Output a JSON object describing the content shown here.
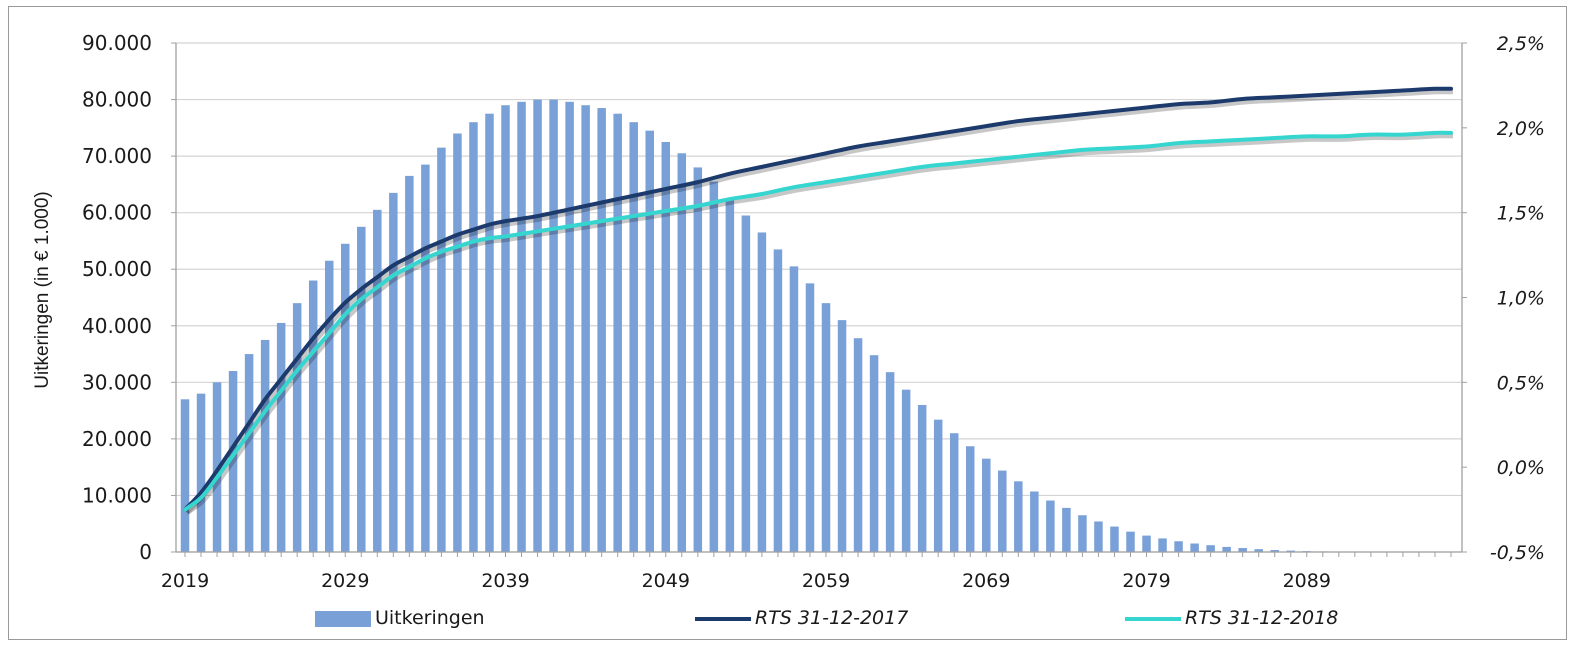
{
  "chart_data": {
    "type": "bar+line",
    "ylabel": "Uitkeringen (in € 1.000)",
    "ylim": [
      0,
      90000
    ],
    "y2lim": [
      -0.5,
      2.5
    ],
    "yticks": [
      "0",
      "10.000",
      "20.000",
      "30.000",
      "40.000",
      "50.000",
      "60.000",
      "70.000",
      "80.000",
      "90.000"
    ],
    "y2ticks": [
      "-0,5%",
      "0,0%",
      "0,5%",
      "1,0%",
      "1,5%",
      "2,0%",
      "2,5%"
    ],
    "xticks": [
      "2019",
      "2029",
      "2039",
      "2049",
      "2059",
      "2069",
      "2079",
      "2089"
    ],
    "grid": true,
    "legend_position": "bottom",
    "years": [
      2019,
      2020,
      2021,
      2022,
      2023,
      2024,
      2025,
      2026,
      2027,
      2028,
      2029,
      2030,
      2031,
      2032,
      2033,
      2034,
      2035,
      2036,
      2037,
      2038,
      2039,
      2040,
      2041,
      2042,
      2043,
      2044,
      2045,
      2046,
      2047,
      2048,
      2049,
      2050,
      2051,
      2052,
      2053,
      2054,
      2055,
      2056,
      2057,
      2058,
      2059,
      2060,
      2061,
      2062,
      2063,
      2064,
      2065,
      2066,
      2067,
      2068,
      2069,
      2070,
      2071,
      2072,
      2073,
      2074,
      2075,
      2076,
      2077,
      2078,
      2079,
      2080,
      2081,
      2082,
      2083,
      2084,
      2085,
      2086,
      2087,
      2088,
      2089,
      2090,
      2091,
      2092,
      2093,
      2094,
      2095,
      2096,
      2097,
      2098
    ],
    "bar_series": {
      "name": "Uitkeringen",
      "color": "#7aa0d8",
      "values": [
        27000,
        28000,
        30000,
        32000,
        35000,
        37500,
        40500,
        44000,
        48000,
        51500,
        54500,
        57500,
        60500,
        63500,
        66500,
        68500,
        71500,
        74000,
        76000,
        77500,
        79000,
        79600,
        80000,
        80000,
        79600,
        79000,
        78500,
        77500,
        76000,
        74500,
        72500,
        70500,
        68000,
        65500,
        62500,
        59500,
        56500,
        53500,
        50500,
        47500,
        44000,
        41000,
        37800,
        34800,
        31800,
        28700,
        26000,
        23400,
        21000,
        18700,
        16500,
        14400,
        12500,
        10700,
        9100,
        7800,
        6500,
        5400,
        4500,
        3600,
        2900,
        2400,
        1900,
        1500,
        1200,
        900,
        700,
        500,
        350,
        250,
        150,
        100,
        70,
        50,
        30,
        20,
        10,
        5,
        3,
        2
      ]
    },
    "line_series": [
      {
        "name": "RTS 31-12-2017",
        "color": "#1c3a6b",
        "points": [
          [
            2019,
            -0.25
          ],
          [
            2020,
            -0.15
          ],
          [
            2021,
            -0.02
          ],
          [
            2022,
            0.12
          ],
          [
            2023,
            0.26
          ],
          [
            2024,
            0.4
          ],
          [
            2025,
            0.52
          ],
          [
            2026,
            0.64
          ],
          [
            2027,
            0.76
          ],
          [
            2028,
            0.87
          ],
          [
            2029,
            0.97
          ],
          [
            2030,
            1.05
          ],
          [
            2031,
            1.12
          ],
          [
            2032,
            1.19
          ],
          [
            2033,
            1.24
          ],
          [
            2034,
            1.29
          ],
          [
            2035,
            1.33
          ],
          [
            2036,
            1.37
          ],
          [
            2037,
            1.4
          ],
          [
            2038,
            1.43
          ],
          [
            2039,
            1.45
          ],
          [
            2041,
            1.48
          ],
          [
            2043,
            1.52
          ],
          [
            2045,
            1.56
          ],
          [
            2047,
            1.6
          ],
          [
            2049,
            1.64
          ],
          [
            2051,
            1.68
          ],
          [
            2053,
            1.73
          ],
          [
            2055,
            1.77
          ],
          [
            2057,
            1.81
          ],
          [
            2059,
            1.85
          ],
          [
            2061,
            1.89
          ],
          [
            2063,
            1.92
          ],
          [
            2065,
            1.95
          ],
          [
            2067,
            1.98
          ],
          [
            2069,
            2.01
          ],
          [
            2071,
            2.04
          ],
          [
            2073,
            2.06
          ],
          [
            2075,
            2.08
          ],
          [
            2077,
            2.1
          ],
          [
            2079,
            2.12
          ],
          [
            2081,
            2.14
          ],
          [
            2083,
            2.15
          ],
          [
            2085,
            2.17
          ],
          [
            2087,
            2.18
          ],
          [
            2089,
            2.19
          ],
          [
            2091,
            2.2
          ],
          [
            2093,
            2.21
          ],
          [
            2095,
            2.22
          ],
          [
            2097,
            2.23
          ],
          [
            2098,
            2.23
          ]
        ]
      },
      {
        "name": "RTS 31-12-2018",
        "color": "#36d6d0",
        "points": [
          [
            2019,
            -0.25
          ],
          [
            2020,
            -0.18
          ],
          [
            2021,
            -0.06
          ],
          [
            2022,
            0.07
          ],
          [
            2023,
            0.2
          ],
          [
            2024,
            0.33
          ],
          [
            2025,
            0.45
          ],
          [
            2026,
            0.57
          ],
          [
            2027,
            0.68
          ],
          [
            2028,
            0.79
          ],
          [
            2029,
            0.9
          ],
          [
            2030,
            0.99
          ],
          [
            2031,
            1.06
          ],
          [
            2032,
            1.13
          ],
          [
            2033,
            1.18
          ],
          [
            2034,
            1.23
          ],
          [
            2035,
            1.27
          ],
          [
            2036,
            1.3
          ],
          [
            2037,
            1.33
          ],
          [
            2038,
            1.35
          ],
          [
            2039,
            1.36
          ],
          [
            2041,
            1.39
          ],
          [
            2043,
            1.42
          ],
          [
            2045,
            1.45
          ],
          [
            2047,
            1.48
          ],
          [
            2049,
            1.51
          ],
          [
            2051,
            1.54
          ],
          [
            2053,
            1.58
          ],
          [
            2055,
            1.61
          ],
          [
            2057,
            1.65
          ],
          [
            2059,
            1.68
          ],
          [
            2061,
            1.71
          ],
          [
            2063,
            1.74
          ],
          [
            2065,
            1.77
          ],
          [
            2067,
            1.79
          ],
          [
            2069,
            1.81
          ],
          [
            2071,
            1.83
          ],
          [
            2073,
            1.85
          ],
          [
            2075,
            1.87
          ],
          [
            2077,
            1.88
          ],
          [
            2079,
            1.89
          ],
          [
            2081,
            1.91
          ],
          [
            2083,
            1.92
          ],
          [
            2085,
            1.93
          ],
          [
            2087,
            1.94
          ],
          [
            2089,
            1.95
          ],
          [
            2091,
            1.95
          ],
          [
            2093,
            1.96
          ],
          [
            2095,
            1.96
          ],
          [
            2097,
            1.97
          ],
          [
            2098,
            1.97
          ]
        ]
      }
    ],
    "legend": [
      {
        "label": "Uitkeringen",
        "kind": "bar"
      },
      {
        "label": "RTS 31-12-2017",
        "kind": "line"
      },
      {
        "label": "RTS 31-12-2018",
        "kind": "line"
      }
    ]
  }
}
